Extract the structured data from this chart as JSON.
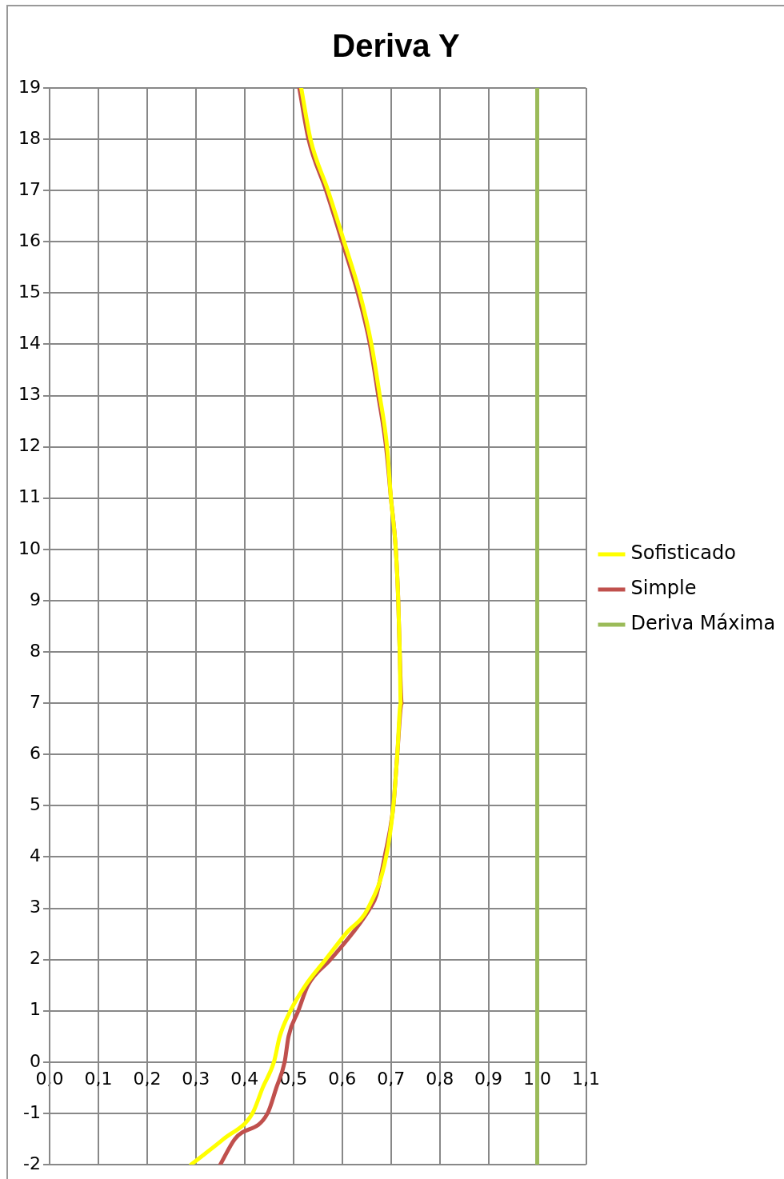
{
  "chart_data": {
    "type": "line",
    "title": "Deriva Y",
    "legend": "right",
    "grid": true,
    "marker": "none",
    "line_style": "solid",
    "xlim": [
      0,
      1.1
    ],
    "ylim": [
      -2,
      19
    ],
    "xticks": [
      {
        "value": 0,
        "label": "0,0"
      },
      {
        "value": 0.1,
        "label": "0,1"
      },
      {
        "value": 0.2,
        "label": "0,2"
      },
      {
        "value": 0.3,
        "label": "0,3"
      },
      {
        "value": 0.4,
        "label": "0,4"
      },
      {
        "value": 0.5,
        "label": "0,5"
      },
      {
        "value": 0.6,
        "label": "0,6"
      },
      {
        "value": 0.7,
        "label": "0,7"
      },
      {
        "value": 0.8,
        "label": "0,8"
      },
      {
        "value": 0.9,
        "label": "0,9"
      },
      {
        "value": 1,
        "label": "1,0"
      },
      {
        "value": 1.1,
        "label": "1,1"
      }
    ],
    "yticks": [
      -2,
      -1,
      0,
      1,
      2,
      3,
      4,
      5,
      6,
      7,
      8,
      9,
      10,
      11,
      12,
      13,
      14,
      15,
      16,
      17,
      18,
      19
    ],
    "series": [
      {
        "name": "Sofisticado",
        "color": "#ffff00",
        "x": [
          0.29,
          0.357,
          0.416,
          0.437,
          0.46,
          0.472,
          0.494,
          0.525,
          0.566,
          0.607,
          0.653,
          0.69,
          0.705,
          0.713,
          0.72,
          0.718,
          0.715,
          0.71,
          0.7,
          0.692,
          0.677,
          0.66,
          0.636,
          0.604,
          0.571,
          0.535,
          0.516
        ],
        "values": [
          -2,
          -1.5,
          -1,
          -0.5,
          0,
          0.5,
          1,
          1.5,
          2,
          2.5,
          3,
          4,
          5,
          6,
          7,
          8,
          9,
          10,
          11,
          12,
          13,
          14,
          15,
          16,
          17,
          18,
          19
        ]
      },
      {
        "name": "Simple",
        "color": "#c0504d",
        "x": [
          0.35,
          0.38,
          0.447,
          0.465,
          0.482,
          0.49,
          0.51,
          0.53,
          0.576,
          0.62,
          0.657,
          0.67,
          0.687,
          0.705,
          0.713,
          0.722,
          0.718,
          0.715,
          0.71,
          0.7,
          0.69,
          0.674,
          0.657,
          0.632,
          0.6,
          0.567,
          0.531,
          0.512
        ],
        "values": [
          -2,
          -1.5,
          -1,
          -0.5,
          0,
          0.5,
          1,
          1.5,
          2,
          2.5,
          3,
          3.25,
          4,
          5,
          6,
          7,
          8,
          9,
          10,
          11,
          12,
          13,
          14,
          15,
          16,
          17,
          18,
          19
        ]
      },
      {
        "name": "Deriva Máxima",
        "color": "#9bbb59",
        "x": [
          1,
          1
        ],
        "values": [
          -2,
          19
        ]
      }
    ]
  }
}
